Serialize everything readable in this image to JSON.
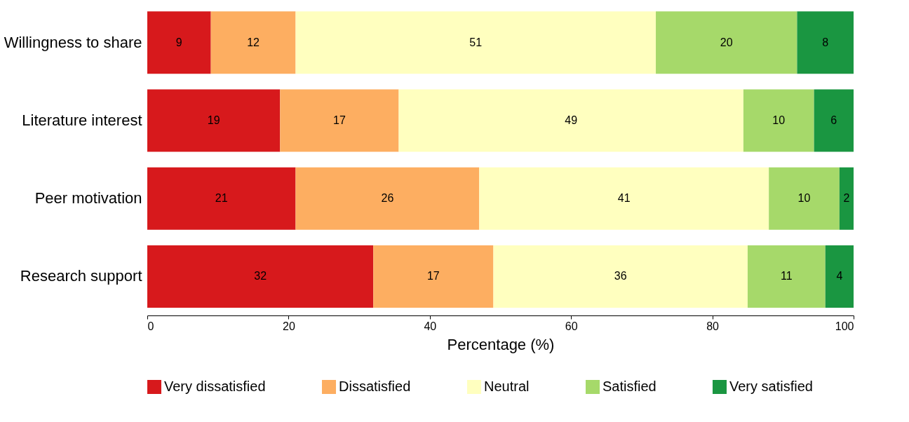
{
  "chart_data": {
    "type": "bar",
    "orientation": "horizontal",
    "stacked": true,
    "xlabel": "Percentage (%)",
    "categories": [
      "Willingness to share",
      "Literature interest",
      "Peer motivation",
      "Research support"
    ],
    "series": [
      {
        "name": "Very dissatisfied",
        "color": "#d7191c",
        "values": [
          9,
          18.8,
          21,
          32
        ],
        "value_labels": [
          "9",
          "19",
          "21",
          "32"
        ]
      },
      {
        "name": "Dissatisfied",
        "color": "#fdae61",
        "values": [
          12,
          16.8,
          26,
          17
        ],
        "value_labels": [
          "12",
          "17",
          "26",
          "17"
        ]
      },
      {
        "name": "Neutral",
        "color": "#ffffbf",
        "values": [
          51,
          48.8,
          41,
          36
        ],
        "value_labels": [
          "51",
          "49",
          "41",
          "36"
        ]
      },
      {
        "name": "Satisfied",
        "color": "#a6d96a",
        "values": [
          20,
          10,
          10,
          11
        ],
        "value_labels": [
          "20",
          "10",
          "10",
          "11"
        ]
      },
      {
        "name": "Very satisfied",
        "color": "#1a9641",
        "values": [
          8,
          5.6,
          2,
          4
        ],
        "value_labels": [
          "8",
          "6",
          "2",
          "4"
        ]
      }
    ],
    "xlim": [
      0,
      100
    ],
    "xticks": [
      0,
      20,
      40,
      60,
      80,
      100
    ],
    "grid": false,
    "legend": "bottom"
  }
}
